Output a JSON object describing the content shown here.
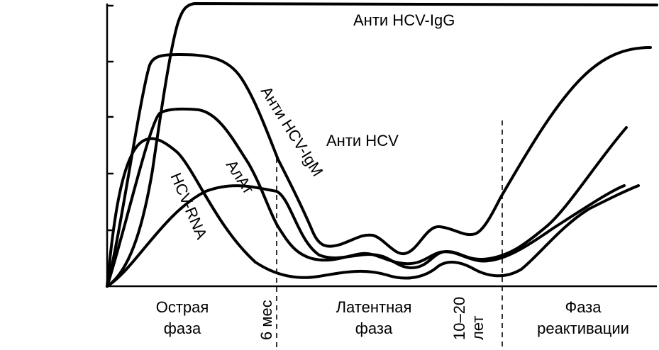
{
  "curves": {
    "igg": "Анти HCV-IgG",
    "igm": "Анти HCV-IgM",
    "total": "Анти HCV",
    "alt": "АлАт",
    "rna": "HCV-RNA"
  },
  "markers": {
    "six_months": "6 мес",
    "years_line1": "10–20",
    "years_line2": "лет"
  },
  "phases": {
    "acute_line1": "Острая",
    "acute_line2": "фаза",
    "latent_line1": "Латентная",
    "latent_line2": "фаза",
    "react_line1": "Фаза",
    "react_line2": "реактивации"
  }
}
